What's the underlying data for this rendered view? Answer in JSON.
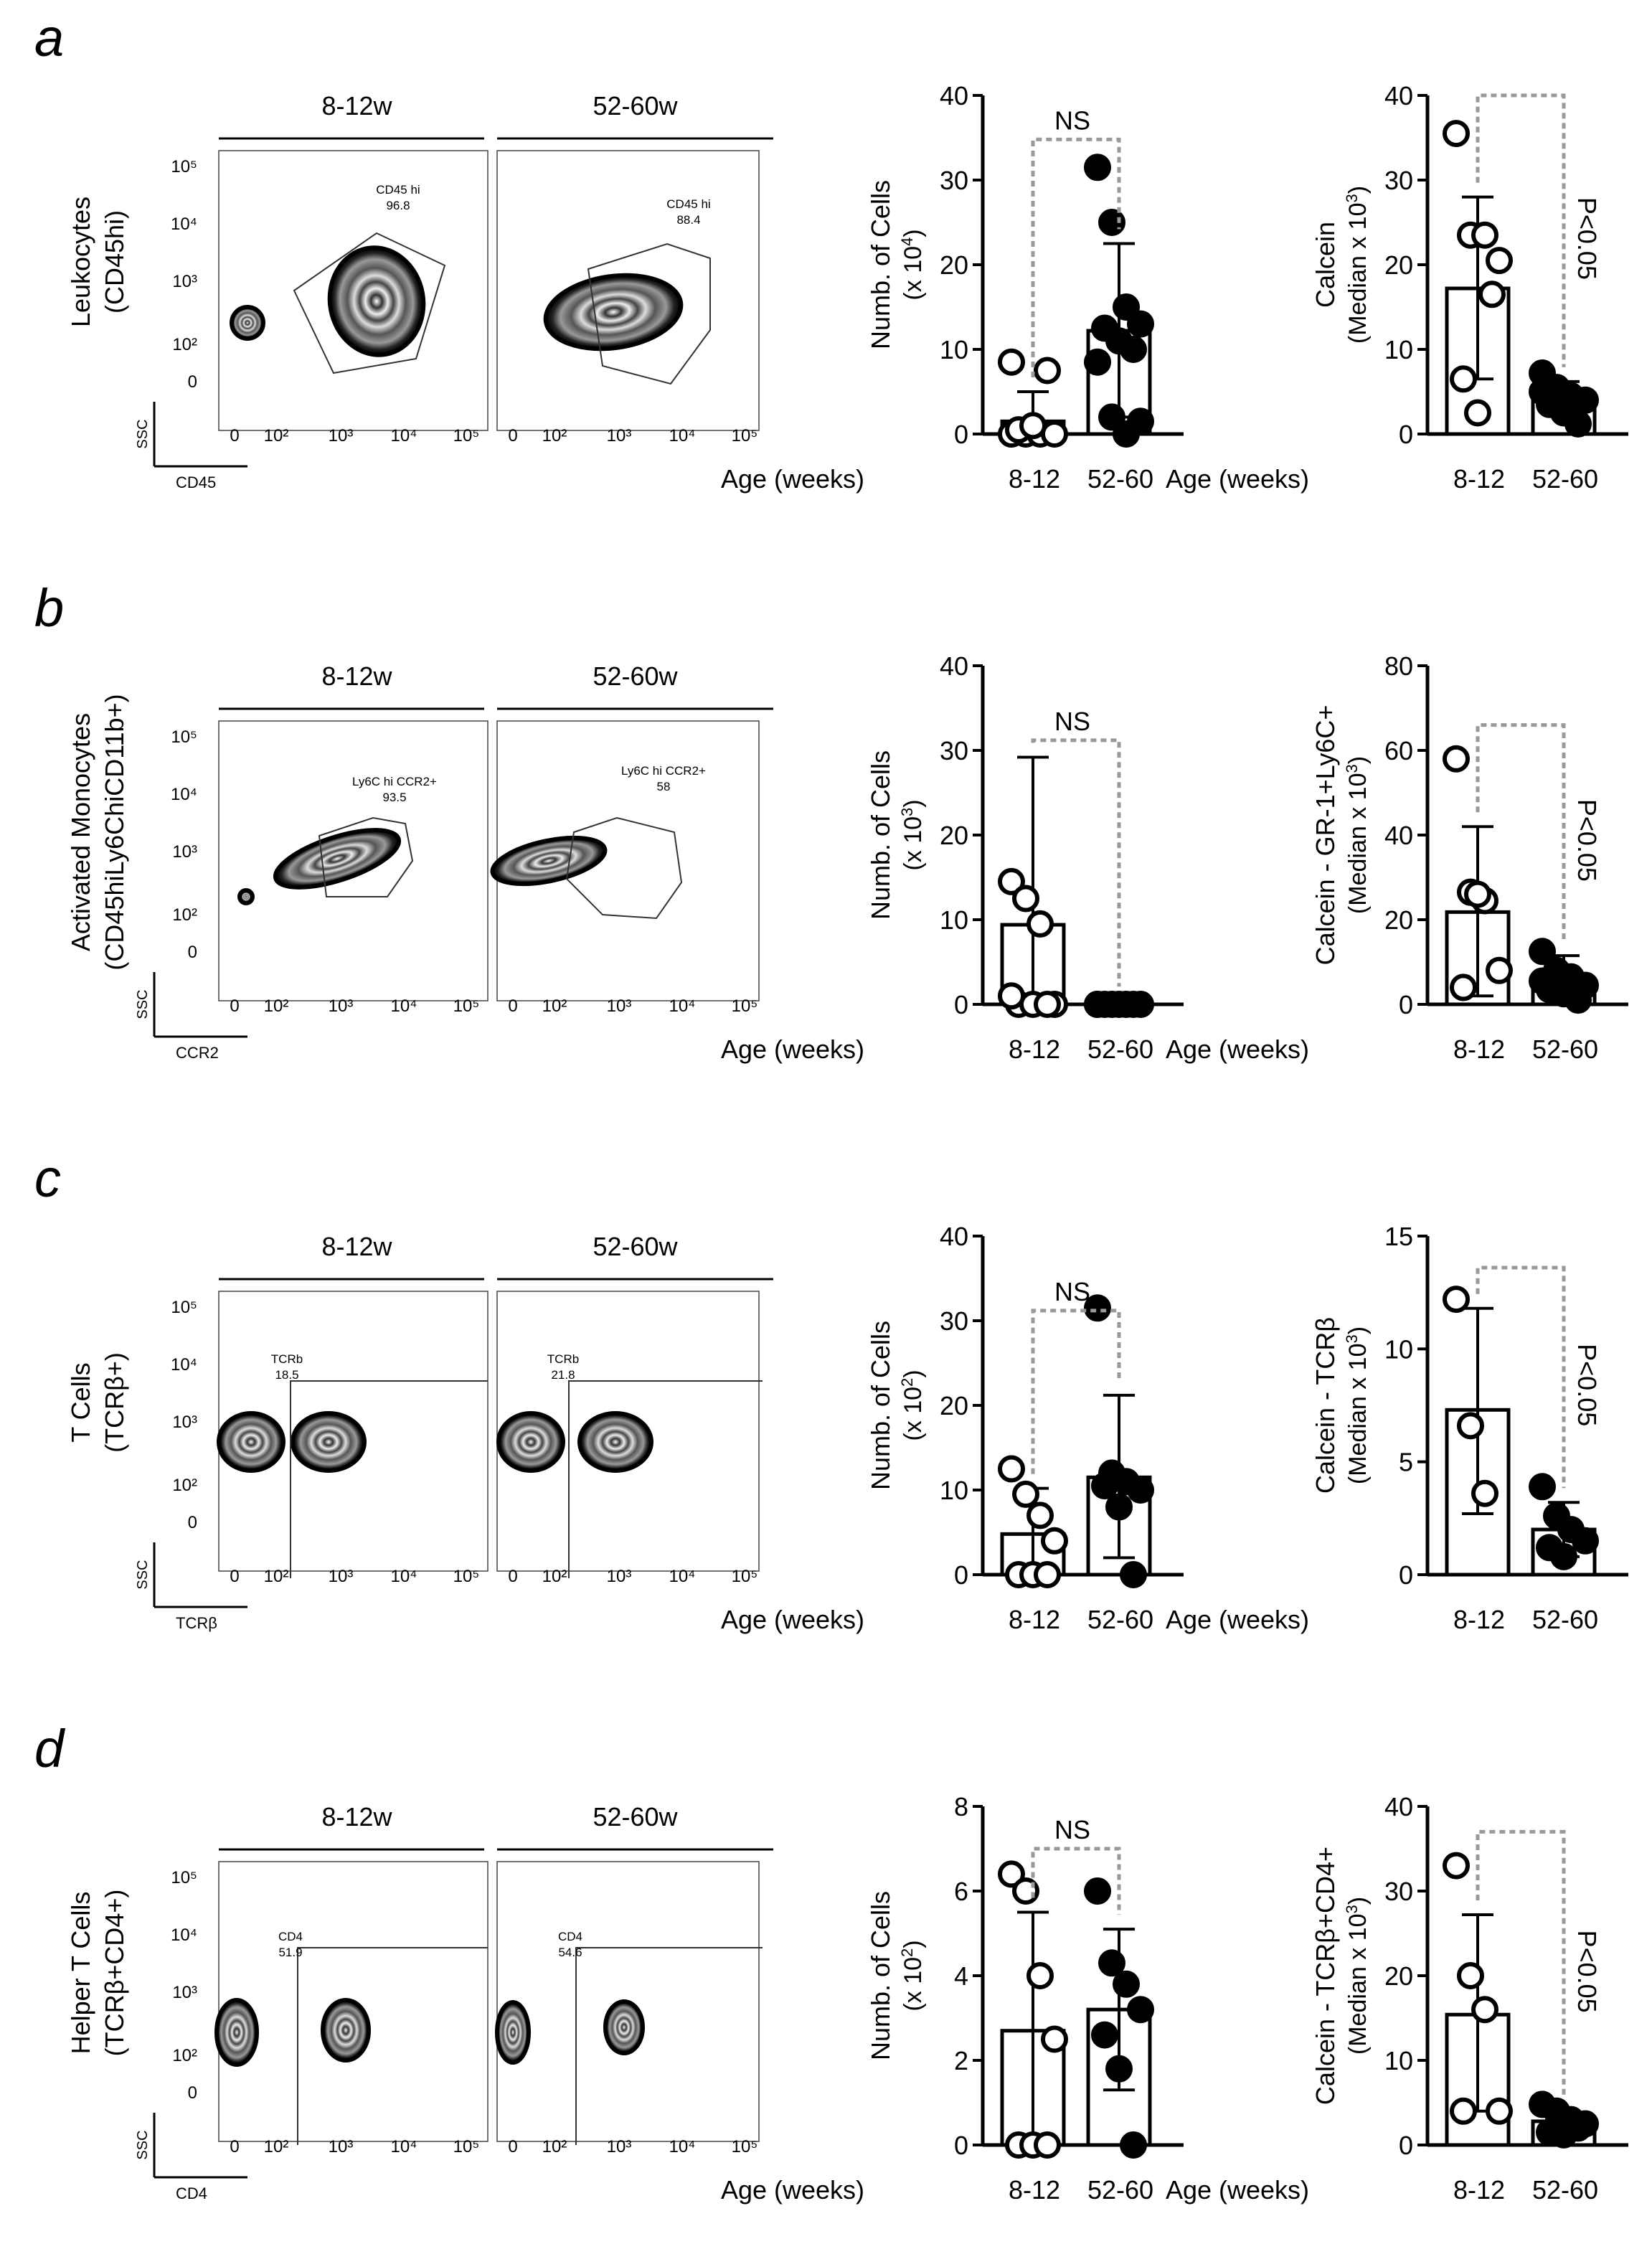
{
  "figure": {
    "rows": [
      {
        "letter": "a",
        "facs": {
          "ylabel_lines": [
            "Leukocytes",
            "(CD45hi)"
          ],
          "panels": [
            {
              "title": "8-12w",
              "gate_name": "CD45 hi",
              "gate_value": "96.8"
            },
            {
              "title": "52-60w",
              "gate_name": "CD45 hi",
              "gate_value": "88.4"
            }
          ],
          "x_marker": "CD45",
          "y_marker": "SSC",
          "x_ticks": [
            "0",
            "10²",
            "10³",
            "10⁴",
            "10⁵"
          ],
          "y_ticks": [
            "10⁵",
            "10⁴",
            "10³",
            "10²",
            "0"
          ]
        }
      },
      {
        "letter": "b",
        "facs": {
          "ylabel_lines": [
            "Activated Monocytes",
            "(CD45hiLy6ChiCD11b+)"
          ],
          "panels": [
            {
              "title": "8-12w",
              "gate_name": "Ly6C hi CCR2+",
              "gate_value": "93.5"
            },
            {
              "title": "52-60w",
              "gate_name": "Ly6C hi CCR2+",
              "gate_value": "58"
            }
          ],
          "x_marker": "CCR2",
          "y_marker": "SSC",
          "x_ticks": [
            "0",
            "10²",
            "10³",
            "10⁴",
            "10⁵"
          ],
          "y_ticks": [
            "10⁵",
            "10⁴",
            "10³",
            "10²",
            "0"
          ]
        }
      },
      {
        "letter": "c",
        "facs": {
          "ylabel_lines": [
            "T Cells",
            "(TCRβ+)"
          ],
          "panels": [
            {
              "title": "8-12w",
              "gate_name": "TCRb",
              "gate_value": "18.5"
            },
            {
              "title": "52-60w",
              "gate_name": "TCRb",
              "gate_value": "21.8"
            }
          ],
          "x_marker": "TCRβ",
          "y_marker": "SSC",
          "x_ticks": [
            "0",
            "10²",
            "10³",
            "10⁴",
            "10⁵"
          ],
          "y_ticks": [
            "10⁵",
            "10⁴",
            "10³",
            "10²",
            "0"
          ]
        }
      },
      {
        "letter": "d",
        "facs": {
          "ylabel_lines": [
            "Helper T Cells",
            "(TCRβ+CD4+)"
          ],
          "panels": [
            {
              "title": "8-12w",
              "gate_name": "CD4",
              "gate_value": "51.9"
            },
            {
              "title": "52-60w",
              "gate_name": "CD4",
              "gate_value": "54.6"
            }
          ],
          "x_marker": "CD4",
          "y_marker": "SSC",
          "x_ticks": [
            "0",
            "10²",
            "10³",
            "10⁴",
            "10⁵"
          ],
          "y_ticks": [
            "10⁵",
            "10⁴",
            "10³",
            "10²",
            "0"
          ]
        }
      }
    ]
  },
  "chart_data": [
    {
      "id": "a-count",
      "type": "bar",
      "ylabel_main": "Numb. of Cells",
      "ylabel_unit": "(x 10",
      "ylabel_exp": "4",
      "ylabel_tail": ")",
      "categories": [
        "8-12",
        "52-60"
      ],
      "xlabel": "Age (weeks)",
      "ylim": [
        0,
        40
      ],
      "yticks": [
        0,
        10,
        20,
        30,
        40
      ],
      "series": [
        {
          "name": "8-12",
          "fill": "open",
          "mean": 1.5,
          "sd_upper": 5.0,
          "sd_lower": 0,
          "points": [
            0,
            0,
            0,
            0,
            0.5,
            1,
            7.5,
            8.5
          ]
        },
        {
          "name": "52-60",
          "fill": "filled",
          "mean": 12.2,
          "sd_upper": 22.5,
          "sd_lower": 2,
          "points": [
            31.5,
            25,
            15,
            13,
            12.5,
            11,
            10,
            8.5,
            2,
            0,
            1.5
          ]
        }
      ],
      "annotation": {
        "text": "NS",
        "orientation": "horizontal",
        "bracket_top": 34.8
      }
    },
    {
      "id": "a-calcein",
      "type": "bar",
      "ylabel_main": "Calcein",
      "ylabel_unit": "(Median x 10",
      "ylabel_exp": "3",
      "ylabel_tail": ")",
      "categories": [
        "8-12",
        "52-60"
      ],
      "xlabel": "Age (weeks)",
      "ylim": [
        0,
        40
      ],
      "yticks": [
        0,
        10,
        20,
        30,
        40
      ],
      "series": [
        {
          "name": "8-12",
          "fill": "open",
          "mean": 17.2,
          "sd_upper": 28,
          "sd_lower": 6.5,
          "points": [
            35.5,
            23.5,
            23.5,
            20.5,
            6.5,
            2.5,
            16.5
          ]
        },
        {
          "name": "52-60",
          "fill": "filled",
          "mean": 4.8,
          "sd_upper": 6.2,
          "sd_lower": 3.2,
          "points": [
            7.2,
            5.5,
            4.5,
            4.0,
            3.5,
            2.5,
            1.2,
            5.0
          ]
        }
      ],
      "annotation": {
        "text": "P<0.05",
        "orientation": "vertical",
        "bracket_top": 40
      }
    },
    {
      "id": "b-count",
      "type": "bar",
      "ylabel_main": "Numb. of Cells",
      "ylabel_unit": "(x 10",
      "ylabel_exp": "3",
      "ylabel_tail": ")",
      "categories": [
        "8-12",
        "52-60"
      ],
      "xlabel": "Age (weeks)",
      "ylim": [
        0,
        40
      ],
      "yticks": [
        0,
        10,
        20,
        30,
        40
      ],
      "series": [
        {
          "name": "8-12",
          "fill": "open",
          "mean": 9.4,
          "sd_upper": 29.2,
          "sd_lower": 0,
          "points": [
            14.5,
            12.5,
            9.5,
            0,
            0,
            0,
            0,
            1
          ]
        },
        {
          "name": "52-60",
          "fill": "filled",
          "mean": 0.2,
          "sd_upper": 0.4,
          "sd_lower": 0,
          "points": [
            0,
            0,
            0,
            0,
            0,
            0,
            0,
            0
          ]
        }
      ],
      "annotation": {
        "text": "NS",
        "orientation": "horizontal",
        "bracket_top": 31.2
      }
    },
    {
      "id": "b-calcein",
      "type": "bar",
      "ylabel_main": "Calcein - GR-1+Ly6C+",
      "ylabel_unit": "(Median x 10",
      "ylabel_exp": "3",
      "ylabel_tail": ")",
      "categories": [
        "8-12",
        "52-60"
      ],
      "xlabel": "Age (weeks)",
      "ylim": [
        0,
        80
      ],
      "yticks": [
        0,
        20,
        40,
        60,
        80
      ],
      "series": [
        {
          "name": "8-12",
          "fill": "open",
          "mean": 21.8,
          "sd_upper": 42,
          "sd_lower": 2,
          "points": [
            58,
            26.5,
            24.5,
            8,
            4,
            26
          ]
        },
        {
          "name": "52-60",
          "fill": "filled",
          "mean": 5.5,
          "sd_upper": 11.5,
          "sd_lower": 1.5,
          "points": [
            12.5,
            8,
            6.5,
            4.5,
            3.5,
            2.5,
            1,
            5.5
          ]
        }
      ],
      "annotation": {
        "text": "P<0.05",
        "orientation": "vertical",
        "bracket_top": 66
      }
    },
    {
      "id": "c-count",
      "type": "bar",
      "ylabel_main": "Numb. of Cells",
      "ylabel_unit": "(x 10",
      "ylabel_exp": "2",
      "ylabel_tail": ")",
      "categories": [
        "8-12",
        "52-60"
      ],
      "xlabel": "Age (weeks)",
      "ylim": [
        0,
        40
      ],
      "yticks": [
        0,
        10,
        20,
        30,
        40
      ],
      "series": [
        {
          "name": "8-12",
          "fill": "open",
          "mean": 4.8,
          "sd_upper": 10.2,
          "sd_lower": 0,
          "points": [
            12.5,
            9.5,
            7,
            4,
            0,
            0,
            0
          ]
        },
        {
          "name": "52-60",
          "fill": "filled",
          "mean": 11.5,
          "sd_upper": 21.2,
          "sd_lower": 2,
          "points": [
            31.5,
            12,
            11,
            10,
            10.5,
            8,
            0
          ]
        }
      ],
      "annotation": {
        "text": "NS",
        "orientation": "horizontal",
        "bracket_top": 31.2
      }
    },
    {
      "id": "c-calcein",
      "type": "bar",
      "ylabel_main": "Calcein - TCRβ",
      "ylabel_unit": "(Median x 10",
      "ylabel_exp": "3",
      "ylabel_tail": ")",
      "categories": [
        "8-12",
        "52-60"
      ],
      "xlabel": "Age (weeks)",
      "ylim": [
        0,
        15
      ],
      "yticks": [
        0,
        5,
        10,
        15
      ],
      "series": [
        {
          "name": "8-12",
          "fill": "open",
          "mean": 7.3,
          "sd_upper": 11.8,
          "sd_lower": 2.7,
          "points": [
            12.2,
            6.6,
            3.6
          ]
        },
        {
          "name": "52-60",
          "fill": "filled",
          "mean": 2.0,
          "sd_upper": 3.2,
          "sd_lower": 0.8,
          "points": [
            3.9,
            2.6,
            2.0,
            1.5,
            1.2,
            0.8
          ]
        }
      ],
      "annotation": {
        "text": "P<0.05",
        "orientation": "vertical",
        "bracket_top": 13.6
      }
    },
    {
      "id": "d-count",
      "type": "bar",
      "ylabel_main": "Numb. of Cells",
      "ylabel_unit": "(x 10",
      "ylabel_exp": "2",
      "ylabel_tail": ")",
      "categories": [
        "8-12",
        "52-60"
      ],
      "xlabel": "Age (weeks)",
      "ylim": [
        0,
        8
      ],
      "yticks": [
        0,
        2,
        4,
        6,
        8
      ],
      "series": [
        {
          "name": "8-12",
          "fill": "open",
          "mean": 2.7,
          "sd_upper": 5.5,
          "sd_lower": 0,
          "points": [
            6.4,
            6.0,
            4.0,
            2.5,
            0,
            0,
            0
          ]
        },
        {
          "name": "52-60",
          "fill": "filled",
          "mean": 3.2,
          "sd_upper": 5.1,
          "sd_lower": 1.3,
          "points": [
            6.0,
            4.3,
            3.8,
            3.2,
            2.6,
            1.8,
            0
          ]
        }
      ],
      "annotation": {
        "text": "NS",
        "orientation": "horizontal",
        "bracket_top": 7.0
      }
    },
    {
      "id": "d-calcein",
      "type": "bar",
      "ylabel_main": "Calcein - TCRβ+CD4+",
      "ylabel_unit": "(Median x 10",
      "ylabel_exp": "3",
      "ylabel_tail": ")",
      "categories": [
        "8-12",
        "52-60"
      ],
      "xlabel": "Age (weeks)",
      "ylim": [
        0,
        40
      ],
      "yticks": [
        0,
        10,
        20,
        30,
        40
      ],
      "series": [
        {
          "name": "8-12",
          "fill": "open",
          "mean": 15.4,
          "sd_upper": 27.2,
          "sd_lower": 4,
          "points": [
            33,
            20,
            16,
            4,
            4
          ]
        },
        {
          "name": "52-60",
          "fill": "filled",
          "mean": 2.8,
          "sd_upper": 4.0,
          "sd_lower": 1.5,
          "points": [
            4.8,
            4.0,
            3.0,
            2.5,
            1.5,
            1.2,
            2.0
          ]
        }
      ],
      "annotation": {
        "text": "P<0.05",
        "orientation": "vertical",
        "bracket_top": 37
      }
    }
  ]
}
